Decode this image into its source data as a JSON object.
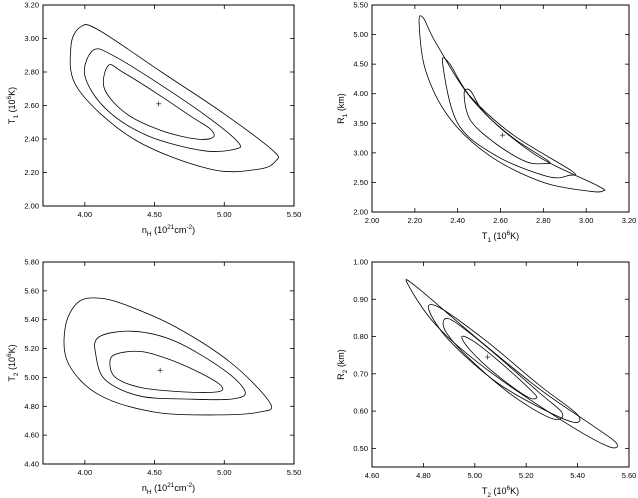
{
  "chart_data": [
    {
      "type": "contour",
      "id": "nh-vs-t1",
      "xlabel": {
        "main": "n",
        "sub": "H",
        "rest": " (10",
        "sup": "21",
        "rest2": "cm",
        "sup2": "-2",
        "end": ")"
      },
      "ylabel": {
        "main": "T",
        "sub": "1",
        "rest": " (10",
        "sup": "6",
        "end": "K)"
      },
      "xlim": [
        3.7,
        5.5
      ],
      "ylim": [
        2.0,
        3.2
      ],
      "xticks": [
        4.0,
        4.5,
        5.0,
        5.5
      ],
      "xtick_labels": [
        "4.00",
        "4.50",
        "5.00",
        "5.50"
      ],
      "yticks": [
        2.0,
        2.2,
        2.4,
        2.6,
        2.8,
        3.0,
        3.2
      ],
      "ytick_labels": [
        "2.00",
        "2.20",
        "2.40",
        "2.60",
        "2.80",
        "3.00",
        "3.20"
      ],
      "best_fit": [
        4.53,
        2.61
      ],
      "contours": [
        [
          [
            4.17,
            2.84
          ],
          [
            4.27,
            2.8
          ],
          [
            4.52,
            2.67
          ],
          [
            4.77,
            2.53
          ],
          [
            4.9,
            2.46
          ],
          [
            4.92,
            2.41
          ],
          [
            4.8,
            2.4
          ],
          [
            4.55,
            2.45
          ],
          [
            4.3,
            2.55
          ],
          [
            4.14,
            2.7
          ],
          [
            4.17,
            2.84
          ]
        ],
        [
          [
            4.06,
            2.93
          ],
          [
            4.2,
            2.9
          ],
          [
            4.55,
            2.72
          ],
          [
            4.9,
            2.52
          ],
          [
            5.1,
            2.38
          ],
          [
            5.08,
            2.34
          ],
          [
            4.85,
            2.33
          ],
          [
            4.45,
            2.42
          ],
          [
            4.15,
            2.58
          ],
          [
            4.0,
            2.78
          ],
          [
            4.06,
            2.93
          ]
        ],
        [
          [
            3.97,
            3.07
          ],
          [
            4.1,
            3.05
          ],
          [
            4.55,
            2.8
          ],
          [
            5.0,
            2.55
          ],
          [
            5.35,
            2.33
          ],
          [
            5.37,
            2.27
          ],
          [
            5.25,
            2.22
          ],
          [
            4.9,
            2.22
          ],
          [
            4.35,
            2.4
          ],
          [
            3.95,
            2.7
          ],
          [
            3.9,
            2.95
          ],
          [
            3.97,
            3.07
          ]
        ]
      ]
    },
    {
      "type": "contour",
      "id": "t1-vs-r1",
      "xlabel": {
        "main": "T",
        "sub": "1",
        "rest": " (10",
        "sup": "6",
        "end": "K)"
      },
      "ylabel": {
        "main": "R",
        "sub": "1",
        "rest": " (km)"
      },
      "xlim": [
        2.0,
        3.2
      ],
      "ylim": [
        2.0,
        5.5
      ],
      "xticks": [
        2.0,
        2.2,
        2.4,
        2.6,
        2.8,
        3.0,
        3.2
      ],
      "xtick_labels": [
        "2.00",
        "2.20",
        "2.40",
        "2.60",
        "2.80",
        "3.00",
        "3.20"
      ],
      "yticks": [
        2.0,
        2.5,
        3.0,
        3.5,
        4.0,
        4.5,
        5.0,
        5.5
      ],
      "ytick_labels": [
        "2.00",
        "2.50",
        "3.00",
        "3.50",
        "4.00",
        "4.50",
        "5.00",
        "5.50"
      ],
      "best_fit": [
        2.61,
        3.3
      ],
      "contours": [
        [
          [
            2.43,
            4.0
          ],
          [
            2.46,
            4.05
          ],
          [
            2.52,
            3.7
          ],
          [
            2.66,
            3.25
          ],
          [
            2.82,
            2.87
          ],
          [
            2.81,
            2.82
          ],
          [
            2.72,
            2.85
          ],
          [
            2.58,
            3.15
          ],
          [
            2.46,
            3.55
          ],
          [
            2.43,
            4.0
          ]
        ],
        [
          [
            2.33,
            4.5
          ],
          [
            2.36,
            4.52
          ],
          [
            2.46,
            3.95
          ],
          [
            2.66,
            3.3
          ],
          [
            2.93,
            2.7
          ],
          [
            2.92,
            2.62
          ],
          [
            2.82,
            2.6
          ],
          [
            2.58,
            2.95
          ],
          [
            2.4,
            3.5
          ],
          [
            2.33,
            4.5
          ]
        ],
        [
          [
            2.22,
            5.2
          ],
          [
            2.24,
            5.28
          ],
          [
            2.3,
            4.85
          ],
          [
            2.48,
            3.85
          ],
          [
            2.75,
            3.0
          ],
          [
            3.05,
            2.45
          ],
          [
            3.08,
            2.36
          ],
          [
            3.02,
            2.35
          ],
          [
            2.8,
            2.5
          ],
          [
            2.55,
            2.95
          ],
          [
            2.36,
            3.6
          ],
          [
            2.25,
            4.4
          ],
          [
            2.22,
            5.2
          ]
        ]
      ]
    },
    {
      "type": "contour",
      "id": "nh-vs-t2",
      "xlabel": {
        "main": "n",
        "sub": "H",
        "rest": " (10",
        "sup": "21",
        "rest2": "cm",
        "sup2": "-2",
        "end": ")"
      },
      "ylabel": {
        "main": "T",
        "sub": "2",
        "rest": " (10",
        "sup": "6",
        "end": "K)"
      },
      "xlim": [
        3.7,
        5.5
      ],
      "ylim": [
        4.4,
        5.8
      ],
      "xticks": [
        4.0,
        4.5,
        5.0,
        5.5
      ],
      "xtick_labels": [
        "4.00",
        "4.50",
        "5.00",
        "5.50"
      ],
      "yticks": [
        4.4,
        4.6,
        4.8,
        5.0,
        5.2,
        5.4,
        5.6,
        5.8
      ],
      "ytick_labels": [
        "4.40",
        "4.60",
        "4.80",
        "5.00",
        "5.20",
        "5.40",
        "5.60",
        "5.80"
      ],
      "best_fit": [
        4.54,
        5.05
      ],
      "contours": [
        [
          [
            4.22,
            5.16
          ],
          [
            4.4,
            5.18
          ],
          [
            4.62,
            5.12
          ],
          [
            4.85,
            5.02
          ],
          [
            4.98,
            4.94
          ],
          [
            4.95,
            4.9
          ],
          [
            4.7,
            4.9
          ],
          [
            4.4,
            4.93
          ],
          [
            4.22,
            5.0
          ],
          [
            4.18,
            5.1
          ],
          [
            4.22,
            5.16
          ]
        ],
        [
          [
            4.1,
            5.28
          ],
          [
            4.35,
            5.32
          ],
          [
            4.65,
            5.25
          ],
          [
            5.0,
            5.05
          ],
          [
            5.15,
            4.9
          ],
          [
            5.05,
            4.85
          ],
          [
            4.75,
            4.85
          ],
          [
            4.4,
            4.87
          ],
          [
            4.15,
            4.98
          ],
          [
            4.08,
            5.15
          ],
          [
            4.1,
            5.28
          ]
        ],
        [
          [
            3.95,
            5.52
          ],
          [
            4.1,
            5.55
          ],
          [
            4.3,
            5.5
          ],
          [
            4.65,
            5.35
          ],
          [
            5.05,
            5.1
          ],
          [
            5.33,
            4.82
          ],
          [
            5.25,
            4.76
          ],
          [
            4.95,
            4.74
          ],
          [
            4.5,
            4.76
          ],
          [
            4.1,
            4.88
          ],
          [
            3.88,
            5.1
          ],
          [
            3.86,
            5.35
          ],
          [
            3.95,
            5.52
          ]
        ]
      ]
    },
    {
      "type": "contour",
      "id": "t2-vs-r2",
      "xlabel": {
        "main": "T",
        "sub": "2",
        "rest": " (10",
        "sup": "6",
        "end": "K)"
      },
      "ylabel": {
        "main": "R",
        "sub": "2",
        "rest": " (km)"
      },
      "xlim": [
        4.6,
        5.6
      ],
      "ylim": [
        0.45,
        1.0
      ],
      "xticks": [
        4.6,
        4.8,
        5.0,
        5.2,
        5.4,
        5.6
      ],
      "xtick_labels": [
        "4.60",
        "4.80",
        "5.00",
        "5.20",
        "5.40",
        "5.60"
      ],
      "yticks": [
        0.5,
        0.6,
        0.7,
        0.8,
        0.9,
        1.0
      ],
      "ytick_labels": [
        "0.50",
        "0.60",
        "0.70",
        "0.80",
        "0.90",
        "1.00"
      ],
      "best_fit": [
        5.05,
        0.745
      ],
      "contours": [
        [
          [
            4.95,
            0.8
          ],
          [
            5.0,
            0.785
          ],
          [
            5.1,
            0.73
          ],
          [
            5.22,
            0.655
          ],
          [
            5.24,
            0.635
          ],
          [
            5.2,
            0.64
          ],
          [
            5.08,
            0.7
          ],
          [
            4.98,
            0.765
          ],
          [
            4.95,
            0.8
          ]
        ],
        [
          [
            4.88,
            0.845
          ],
          [
            4.92,
            0.84
          ],
          [
            5.05,
            0.77
          ],
          [
            5.25,
            0.65
          ],
          [
            5.34,
            0.595
          ],
          [
            5.3,
            0.58
          ],
          [
            5.15,
            0.64
          ],
          [
            4.98,
            0.74
          ],
          [
            4.89,
            0.81
          ],
          [
            4.88,
            0.845
          ]
        ],
        [
          [
            4.82,
            0.875
          ],
          [
            4.87,
            0.875
          ],
          [
            5.05,
            0.785
          ],
          [
            5.25,
            0.67
          ],
          [
            5.4,
            0.59
          ],
          [
            5.36,
            0.575
          ],
          [
            5.1,
            0.67
          ],
          [
            4.9,
            0.79
          ],
          [
            4.82,
            0.875
          ]
        ],
        [
          [
            4.74,
            0.94
          ],
          [
            4.77,
            0.935
          ],
          [
            5.0,
            0.8
          ],
          [
            5.25,
            0.66
          ],
          [
            5.45,
            0.565
          ],
          [
            5.55,
            0.515
          ],
          [
            5.52,
            0.505
          ],
          [
            5.35,
            0.57
          ],
          [
            5.05,
            0.71
          ],
          [
            4.85,
            0.83
          ],
          [
            4.74,
            0.94
          ]
        ]
      ]
    }
  ]
}
